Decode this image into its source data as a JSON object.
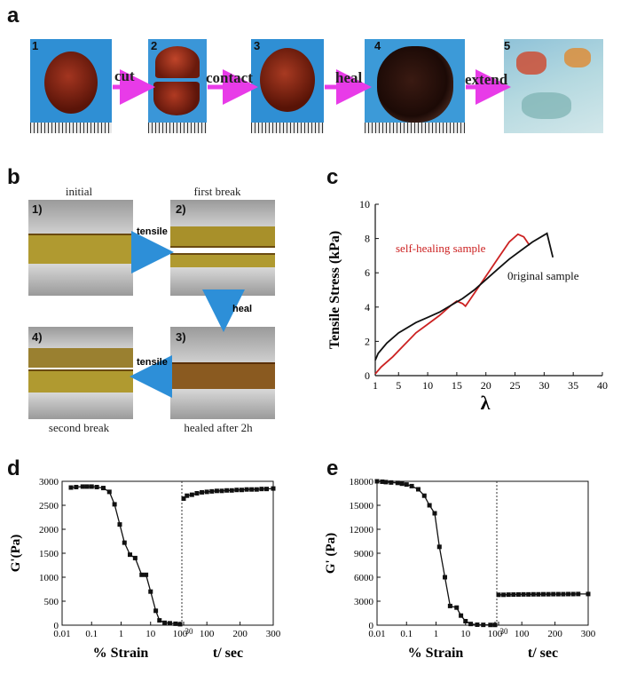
{
  "panels": {
    "a": "a",
    "b": "b",
    "c": "c",
    "d": "d",
    "e": "e"
  },
  "panel_a": {
    "numbers": [
      "1",
      "2",
      "3",
      "4",
      "5"
    ],
    "arrows": [
      "cut",
      "contact",
      "heal",
      "extend"
    ]
  },
  "panel_b": {
    "captions": {
      "initial": "initial",
      "first_break": "first break",
      "second_break": "second break",
      "healed": "healed after 2h"
    },
    "numbers": [
      "1)",
      "2)",
      "3)",
      "4)"
    ],
    "arrows": {
      "tensile1": "tensile",
      "heal": "heal",
      "tensile2": "tensile"
    }
  },
  "colors": {
    "sky": "#3a93d6",
    "magenta": "#e83be8",
    "blue_arrow": "#2d8fd8",
    "gel": "#8a2a14",
    "red_curve": "#cc2222"
  },
  "chart_data": [
    {
      "id": "c",
      "type": "line",
      "xlabel": "λ",
      "ylabel": "Tensile Stress (kPa)",
      "xlim": [
        1,
        40
      ],
      "ylim": [
        0,
        10
      ],
      "xticks": [
        "1",
        "5",
        "10",
        "15",
        "20",
        "25",
        "30",
        "35",
        "40"
      ],
      "yticks": [
        "0",
        "2",
        "4",
        "6",
        "8",
        "10"
      ],
      "annotations": [
        "self-healing sample",
        "0riginal sample"
      ],
      "series": [
        {
          "name": "self-healing sample",
          "color": "#cc2222",
          "x": [
            1,
            2,
            4,
            6,
            8,
            10,
            12,
            14,
            15,
            16,
            16.5,
            17,
            18,
            20,
            22,
            24,
            25.5,
            26.5,
            27.5
          ],
          "y": [
            0.1,
            0.5,
            1.1,
            1.8,
            2.5,
            3.0,
            3.5,
            4.1,
            4.35,
            4.2,
            4.05,
            4.3,
            4.8,
            5.8,
            6.8,
            7.8,
            8.25,
            8.1,
            7.6
          ]
        },
        {
          "name": "0riginal sample",
          "color": "#111111",
          "x": [
            1,
            1.5,
            3,
            5,
            8,
            10,
            12,
            14,
            16,
            18,
            20,
            22,
            24,
            26,
            28,
            30,
            30.5,
            31,
            31.5
          ],
          "y": [
            0.9,
            1.3,
            1.9,
            2.5,
            3.1,
            3.4,
            3.7,
            4.1,
            4.5,
            5.0,
            5.6,
            6.2,
            6.8,
            7.3,
            7.8,
            8.2,
            8.3,
            7.6,
            6.9
          ]
        }
      ]
    },
    {
      "id": "d",
      "type": "scatter",
      "ylabel": "G'(Pa)",
      "xlabel_left": "% Strain",
      "xlabel_right": "t/ sec",
      "yticks": [
        "0",
        "500",
        "1000",
        "1500",
        "2000",
        "2500",
        "3000"
      ],
      "ylim": [
        0,
        3000
      ],
      "xticks_left": [
        "0.01",
        "0.1",
        "1",
        "10",
        "100"
      ],
      "xticks_right": [
        "30",
        "100",
        "200",
        "300"
      ],
      "strain": {
        "x": [
          0.02,
          0.03,
          0.05,
          0.07,
          0.1,
          0.15,
          0.25,
          0.4,
          0.6,
          0.9,
          1.3,
          2,
          3,
          5,
          7,
          10,
          15,
          20,
          30,
          45,
          70,
          100
        ],
        "y": [
          2870,
          2880,
          2890,
          2890,
          2890,
          2880,
          2860,
          2780,
          2520,
          2100,
          1720,
          1470,
          1400,
          1050,
          1050,
          700,
          300,
          100,
          50,
          40,
          30,
          20
        ]
      },
      "time": {
        "x": [
          30,
          40,
          55,
          70,
          85,
          100,
          115,
          130,
          145,
          160,
          175,
          190,
          205,
          220,
          235,
          250,
          265,
          280,
          300
        ],
        "y": [
          2640,
          2700,
          2720,
          2750,
          2770,
          2780,
          2790,
          2800,
          2800,
          2810,
          2810,
          2820,
          2820,
          2830,
          2830,
          2830,
          2840,
          2840,
          2850
        ]
      }
    },
    {
      "id": "e",
      "type": "scatter",
      "ylabel": "G' (Pa)",
      "xlabel_left": "% Strain",
      "xlabel_right": "t/ sec",
      "yticks": [
        "0",
        "3000",
        "6000",
        "9000",
        "12000",
        "15000",
        "18000"
      ],
      "ylim": [
        0,
        18000
      ],
      "xticks_left": [
        "0.01",
        "0.1",
        "1",
        "10",
        "100"
      ],
      "xticks_right": [
        "30",
        "100",
        "200",
        "300"
      ],
      "strain": {
        "x": [
          0.01,
          0.015,
          0.02,
          0.03,
          0.05,
          0.07,
          0.1,
          0.15,
          0.25,
          0.4,
          0.6,
          0.9,
          1.3,
          2,
          3,
          5,
          7,
          10,
          15,
          25,
          40,
          70,
          100
        ],
        "y": [
          18000,
          17950,
          17900,
          17850,
          17800,
          17700,
          17600,
          17400,
          17000,
          16200,
          15000,
          14000,
          9800,
          6000,
          2400,
          2200,
          1200,
          500,
          150,
          60,
          40,
          30,
          30
        ]
      },
      "time": {
        "x": [
          30,
          45,
          60,
          75,
          90,
          105,
          120,
          135,
          150,
          165,
          180,
          195,
          210,
          225,
          240,
          255,
          270,
          300
        ],
        "y": [
          3800,
          3800,
          3820,
          3830,
          3840,
          3850,
          3850,
          3860,
          3860,
          3870,
          3870,
          3880,
          3880,
          3880,
          3890,
          3890,
          3900,
          3900
        ]
      }
    }
  ]
}
